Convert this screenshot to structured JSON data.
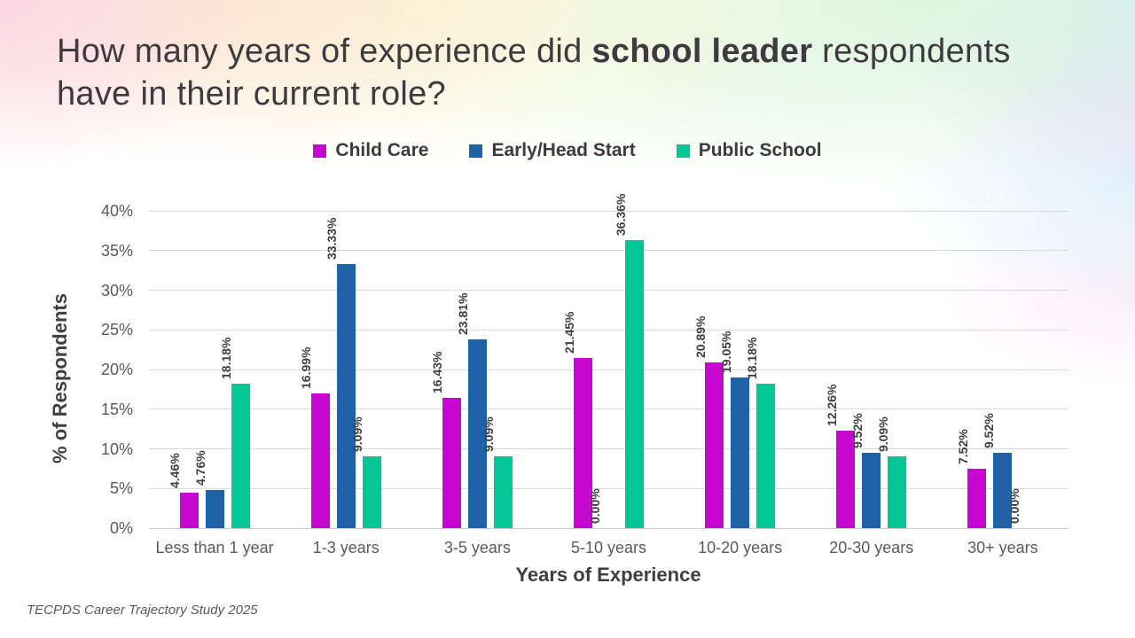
{
  "title": {
    "prefix": "How many years of experience did ",
    "bold": "school leader",
    "suffix": " respondents have in their current role?"
  },
  "chart_data": {
    "type": "bar",
    "title": "How many years of experience did school leader respondents have in their current role?",
    "categories": [
      "Less than 1 year",
      "1-3 years",
      "3-5 years",
      "5-10 years",
      "10-20 years",
      "20-30 years",
      "30+ years"
    ],
    "series": [
      {
        "name": "Child Care",
        "color": "#C607CF",
        "values": [
          4.46,
          16.99,
          16.43,
          21.45,
          20.89,
          12.26,
          7.52
        ]
      },
      {
        "name": "Early/Head Start",
        "color": "#1F63A6",
        "values": [
          4.76,
          33.33,
          23.81,
          0.0,
          19.05,
          9.52,
          9.52
        ]
      },
      {
        "name": "Public School",
        "color": "#00C795",
        "values": [
          18.18,
          9.09,
          9.09,
          36.36,
          18.18,
          9.09,
          0.0
        ]
      }
    ],
    "xlabel": "Years of Experience",
    "ylabel": "% of Respondents",
    "ylim": [
      0,
      40
    ],
    "ytick_step": 5,
    "ytick_suffix": "%",
    "value_label_decimals": 2,
    "grid": true,
    "legend_position": "top",
    "gridline_color": "#D9D9D9",
    "baseline_color": "#CFCFCF"
  },
  "footer": {
    "source": "TECPDS Career Trajectory Study 2025"
  }
}
